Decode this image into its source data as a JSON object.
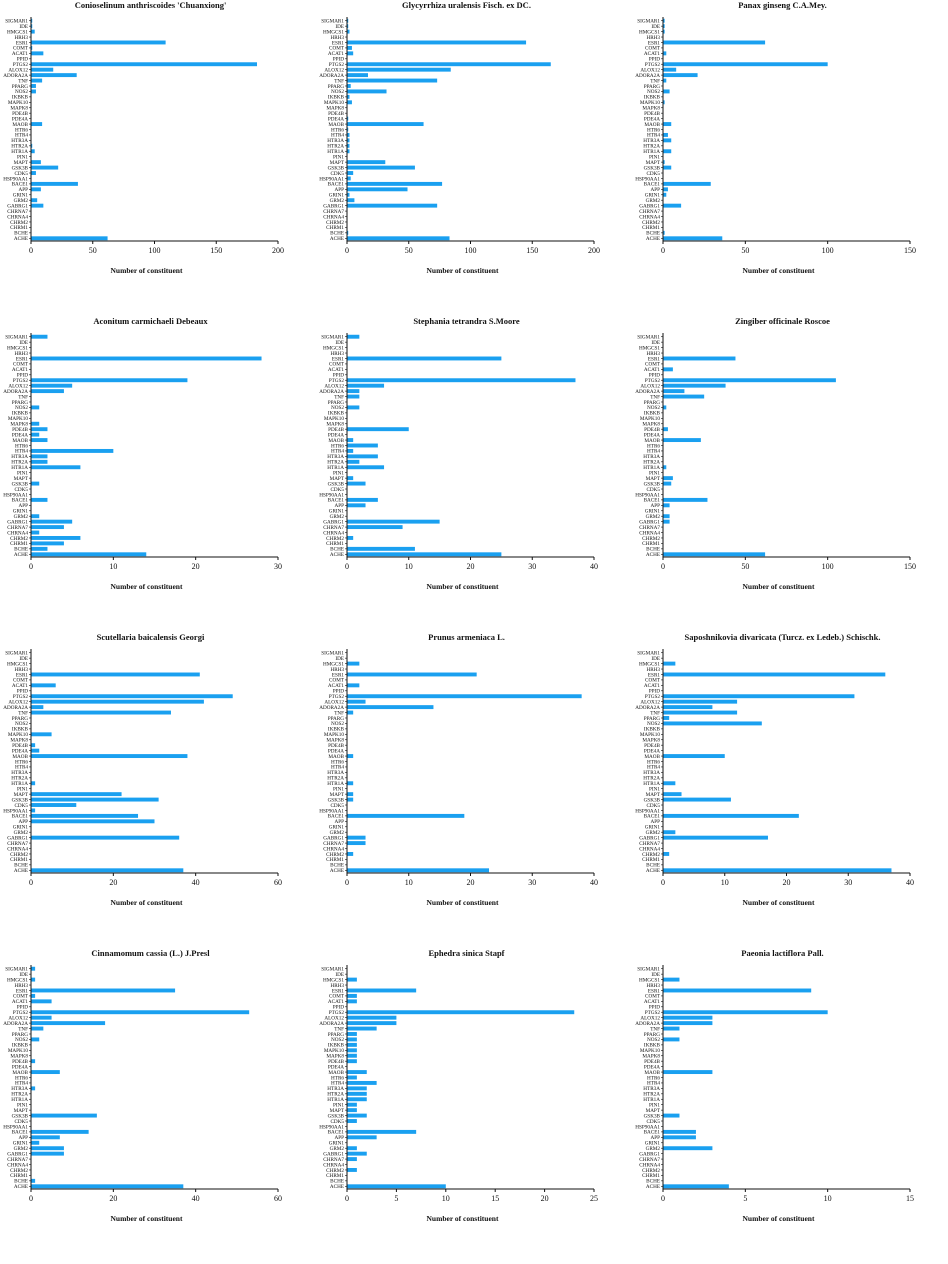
{
  "colors": {
    "bar": "#1aa0f0",
    "axis": "#111111"
  },
  "chart_data": [
    {
      "type": "bar",
      "orientation": "horizontal",
      "title": "Conioselinum anthriscoides 'Chuanxiong'",
      "xlabel": "Number of constituent",
      "xlim": [
        0,
        200
      ],
      "xticks": [
        0,
        50,
        100,
        150,
        200
      ],
      "categories": [
        "SIGMAR1",
        "IDE",
        "HMGCS1",
        "HRH3",
        "ESR1",
        "COMT",
        "ACAT1",
        "PPID",
        "PTGS2",
        "ALOX12",
        "ADORA2A",
        "TNF",
        "PPARG",
        "NOS2",
        "IKBKB",
        "MAPK10",
        "MAPK8",
        "PDE4B",
        "PDE4A",
        "MAOB",
        "HTR6",
        "HTR4",
        "HTR3A",
        "HTR2A",
        "HTR1A",
        "PIN1",
        "MAPT",
        "GSK3B",
        "CDK5",
        "HSP90AA1",
        "BACE1",
        "APP",
        "GRIN1",
        "GRM2",
        "GABRG1",
        "CHRNA7",
        "CHRNA4",
        "CHRM2",
        "CHRM1",
        "BCHE",
        "ACHE"
      ],
      "values": [
        1,
        1,
        3,
        0,
        109,
        1,
        10,
        0,
        183,
        18,
        37,
        9,
        4,
        4,
        0,
        0,
        0,
        0,
        0,
        9,
        0,
        0,
        0,
        1,
        3,
        0,
        8,
        22,
        4,
        0,
        38,
        8,
        0,
        5,
        10,
        0,
        0,
        0,
        0,
        0,
        62
      ]
    },
    {
      "type": "bar",
      "orientation": "horizontal",
      "title": "Glycyrrhiza uralensis Fisch. ex DC.",
      "xlabel": "Number of constituent",
      "xlim": [
        0,
        200
      ],
      "xticks": [
        0,
        50,
        100,
        150,
        200
      ],
      "categories": [
        "SIGMAR1",
        "IDE",
        "HMGCS1",
        "HRH3",
        "ESR1",
        "COMT",
        "ACAT1",
        "PPID",
        "PTGS2",
        "ALOX12",
        "ADORA2A",
        "TNF",
        "PPARG",
        "NOS2",
        "IKBKB",
        "MAPK10",
        "MAPK8",
        "PDE4B",
        "PDE4A",
        "MAOB",
        "HTR6",
        "HTR4",
        "HTR3A",
        "HTR2A",
        "HTR1A",
        "PIN1",
        "MAPT",
        "GSK3B",
        "CDK5",
        "HSP90AA1",
        "BACE1",
        "APP",
        "GRIN1",
        "GRM2",
        "GABRG1",
        "CHRNA7",
        "CHRNA4",
        "CHRM2",
        "CHRM1",
        "BCHE",
        "ACHE"
      ],
      "values": [
        1,
        1,
        2,
        0,
        145,
        4,
        5,
        0,
        165,
        84,
        17,
        73,
        3,
        32,
        2,
        4,
        0,
        0,
        1,
        62,
        1,
        2,
        2,
        2,
        2,
        0,
        31,
        55,
        5,
        3,
        77,
        49,
        2,
        6,
        73,
        0,
        0,
        0,
        0,
        1,
        83
      ]
    },
    {
      "type": "bar",
      "orientation": "horizontal",
      "title": "Panax ginseng C.A.Mey.",
      "xlabel": "Number of constituent",
      "xlim": [
        0,
        150
      ],
      "xticks": [
        0,
        50,
        100,
        150
      ],
      "categories": [
        "SIGMAR1",
        "IDE",
        "HMGCS1",
        "HRH3",
        "ESR1",
        "COMT",
        "ACAT1",
        "PPID",
        "PTGS2",
        "ALOX12",
        "ADORA2A",
        "TNF",
        "PPARG",
        "NOS2",
        "IKBKB",
        "MAPK10",
        "MAPK8",
        "PDE4B",
        "PDE4A",
        "MAOB",
        "HTR6",
        "HTR4",
        "HTR3A",
        "HTR2A",
        "HTR1A",
        "PIN1",
        "MAPT",
        "GSK3B",
        "CDK5",
        "HSP90AA1",
        "BACE1",
        "APP",
        "GRIN1",
        "GRM2",
        "GABRG1",
        "CHRNA7",
        "CHRNA4",
        "CHRM2",
        "CHRM1",
        "BCHE",
        "ACHE"
      ],
      "values": [
        1,
        1,
        1,
        0,
        62,
        0,
        2,
        0,
        100,
        8,
        21,
        2,
        0,
        4,
        0,
        1,
        0,
        0,
        0,
        5,
        0,
        3,
        5,
        0,
        5,
        0,
        1,
        5,
        0,
        0,
        29,
        3,
        2,
        0,
        11,
        0,
        0,
        0,
        0,
        1,
        36
      ]
    },
    {
      "type": "bar",
      "orientation": "horizontal",
      "title": "Aconitum carmichaeli Debeaux",
      "xlabel": "Number of constituent",
      "xlim": [
        0,
        30
      ],
      "xticks": [
        0,
        10,
        20,
        30
      ],
      "categories": [
        "SIGMAR1",
        "IDE",
        "HMGCS1",
        "HRH3",
        "ESR1",
        "COMT",
        "ACAT1",
        "PPID",
        "PTGS2",
        "ALOX12",
        "ADORA2A",
        "TNF",
        "PPARG",
        "NOS2",
        "IKBKB",
        "MAPK10",
        "MAPK8",
        "PDE4B",
        "PDE4A",
        "MAOB",
        "HTR6",
        "HTR4",
        "HTR3A",
        "HTR2A",
        "HTR1A",
        "PIN1",
        "MAPT",
        "GSK3B",
        "CDK5",
        "HSP90AA1",
        "BACE1",
        "APP",
        "GRIN1",
        "GRM2",
        "GABRG1",
        "CHRNA7",
        "CHRNA4",
        "CHRM2",
        "CHRM1",
        "BCHE",
        "ACHE"
      ],
      "values": [
        2,
        0,
        0,
        0,
        28,
        0,
        0,
        0,
        19,
        5,
        4,
        0,
        0,
        1,
        0,
        0,
        1,
        2,
        1,
        2,
        0,
        10,
        2,
        2,
        6,
        0,
        0,
        1,
        0,
        0,
        2,
        0,
        0,
        1,
        5,
        4,
        1,
        6,
        4,
        2,
        14
      ]
    },
    {
      "type": "bar",
      "orientation": "horizontal",
      "title": "Stephania tetrandra S.Moore",
      "xlabel": "Number of constituent",
      "xlim": [
        0,
        40
      ],
      "xticks": [
        0,
        10,
        20,
        30,
        40
      ],
      "categories": [
        "SIGMAR1",
        "IDE",
        "HMGCS1",
        "HRH3",
        "ESR1",
        "COMT",
        "ACAT1",
        "PPID",
        "PTGS2",
        "ALOX12",
        "ADORA2A",
        "TNF",
        "PPARG",
        "NOS2",
        "IKBKB",
        "MAPK10",
        "MAPK8",
        "PDE4B",
        "PDE4A",
        "MAOB",
        "HTR6",
        "HTR4",
        "HTR3A",
        "HTR2A",
        "HTR1A",
        "PIN1",
        "MAPT",
        "GSK3B",
        "CDK5",
        "HSP90AA1",
        "BACE1",
        "APP",
        "GRIN1",
        "GRM2",
        "GABRG1",
        "CHRNA7",
        "CHRNA4",
        "CHRM2",
        "CHRM1",
        "BCHE",
        "ACHE"
      ],
      "values": [
        2,
        0,
        0,
        0,
        25,
        0,
        0,
        0,
        37,
        6,
        2,
        2,
        0,
        2,
        0,
        0,
        0,
        10,
        0,
        1,
        5,
        1,
        5,
        2,
        6,
        0,
        1,
        3,
        0,
        0,
        5,
        3,
        0,
        0,
        15,
        9,
        0,
        1,
        0,
        11,
        25
      ]
    },
    {
      "type": "bar",
      "orientation": "horizontal",
      "title": "Zingiber officinale Roscoe",
      "xlabel": "Number of constituent",
      "xlim": [
        0,
        150
      ],
      "xticks": [
        0,
        50,
        100,
        150
      ],
      "categories": [
        "SIGMAR1",
        "IDE",
        "HMGCS1",
        "HRH3",
        "ESR1",
        "COMT",
        "ACAT1",
        "PPID",
        "PTGS2",
        "ALOX12",
        "ADORA2A",
        "TNF",
        "PPARG",
        "NOS2",
        "IKBKB",
        "MAPK10",
        "MAPK8",
        "PDE4B",
        "PDE4A",
        "MAOB",
        "HTR6",
        "HTR4",
        "HTR3A",
        "HTR2A",
        "HTR1A",
        "PIN1",
        "MAPT",
        "GSK3B",
        "CDK5",
        "HSP90AA1",
        "BACE1",
        "APP",
        "GRIN1",
        "GRM2",
        "GABRG1",
        "CHRNA7",
        "CHRNA4",
        "CHRM2",
        "CHRM1",
        "BCHE",
        "ACHE"
      ],
      "values": [
        0,
        0,
        0,
        0,
        44,
        0,
        6,
        0,
        105,
        38,
        13,
        25,
        0,
        2,
        0,
        0,
        0,
        3,
        0,
        23,
        0,
        0,
        0,
        0,
        2,
        0,
        6,
        5,
        0,
        0,
        27,
        4,
        0,
        4,
        4,
        0,
        0,
        0,
        0,
        0,
        62
      ]
    },
    {
      "type": "bar",
      "orientation": "horizontal",
      "title": "Scutellaria baicalensis Georgi",
      "xlabel": "Number of constituent",
      "xlim": [
        0,
        60
      ],
      "xticks": [
        0,
        20,
        40,
        60
      ],
      "categories": [
        "SIGMAR1",
        "IDE",
        "HMGCS1",
        "HRH3",
        "ESR1",
        "COMT",
        "ACAT1",
        "PPID",
        "PTGS2",
        "ALOX12",
        "ADORA2A",
        "TNF",
        "PPARG",
        "NOS2",
        "IKBKB",
        "MAPK10",
        "MAPK8",
        "PDE4B",
        "PDE4A",
        "MAOB",
        "HTR6",
        "HTR4",
        "HTR3A",
        "HTR2A",
        "HTR1A",
        "PIN1",
        "MAPT",
        "GSK3B",
        "CDK5",
        "HSP90AA1",
        "BACE1",
        "APP",
        "GRIN1",
        "GRM2",
        "GABRG1",
        "CHRNA7",
        "CHRNA4",
        "CHRM2",
        "CHRM1",
        "BCHE",
        "ACHE"
      ],
      "values": [
        0,
        0,
        0,
        0,
        41,
        0,
        6,
        0,
        49,
        42,
        3,
        34,
        0,
        0,
        0,
        5,
        0,
        1,
        2,
        38,
        0,
        0,
        0,
        0,
        1,
        0,
        22,
        31,
        11,
        1,
        26,
        30,
        0,
        0,
        36,
        0,
        0,
        0,
        0,
        0,
        37
      ]
    },
    {
      "type": "bar",
      "orientation": "horizontal",
      "title": "Prunus armeniaca L.",
      "xlabel": "Number of constituent",
      "xlim": [
        0,
        40
      ],
      "xticks": [
        0,
        10,
        20,
        30,
        40
      ],
      "categories": [
        "SIGMAR1",
        "IDE",
        "HMGCS1",
        "HRH3",
        "ESR1",
        "COMT",
        "ACAT1",
        "PPID",
        "PTGS2",
        "ALOX12",
        "ADORA2A",
        "TNF",
        "PPARG",
        "NOS2",
        "IKBKB",
        "MAPK10",
        "MAPK8",
        "PDE4B",
        "PDE4A",
        "MAOB",
        "HTR6",
        "HTR4",
        "HTR3A",
        "HTR2A",
        "HTR1A",
        "PIN1",
        "MAPT",
        "GSK3B",
        "CDK5",
        "HSP90AA1",
        "BACE1",
        "APP",
        "GRIN1",
        "GRM2",
        "GABRG1",
        "CHRNA7",
        "CHRNA4",
        "CHRM2",
        "CHRM1",
        "BCHE",
        "ACHE"
      ],
      "values": [
        0,
        0,
        2,
        0,
        21,
        0,
        2,
        0,
        38,
        3,
        14,
        1,
        0,
        0,
        0,
        0,
        0,
        0,
        0,
        1,
        0,
        0,
        0,
        0,
        1,
        0,
        1,
        1,
        0,
        0,
        19,
        0,
        0,
        0,
        3,
        3,
        0,
        1,
        0,
        0,
        23
      ]
    },
    {
      "type": "bar",
      "orientation": "horizontal",
      "title": "Saposhnikovia divaricata (Turcz. ex Ledeb.) Schischk.",
      "xlabel": "Number of constituent",
      "xlim": [
        0,
        40
      ],
      "xticks": [
        0,
        10,
        20,
        30,
        40
      ],
      "categories": [
        "SIGMAR1",
        "IDE",
        "HMGCS1",
        "HRH3",
        "ESR1",
        "COMT",
        "ACAT1",
        "PPID",
        "PTGS2",
        "ALOX12",
        "ADORA2A",
        "TNF",
        "PPARG",
        "NOS2",
        "IKBKB",
        "MAPK10",
        "MAPK8",
        "PDE4B",
        "PDE4A",
        "MAOB",
        "HTR6",
        "HTR4",
        "HTR3A",
        "HTR2A",
        "HTR1A",
        "PIN1",
        "MAPT",
        "GSK3B",
        "CDK5",
        "HSP90AA1",
        "BACE1",
        "APP",
        "GRIN1",
        "GRM2",
        "GABRG1",
        "CHRNA7",
        "CHRNA4",
        "CHRM2",
        "CHRM1",
        "BCHE",
        "ACHE"
      ],
      "values": [
        0,
        0,
        2,
        0,
        36,
        0,
        0,
        0,
        31,
        12,
        8,
        12,
        1,
        16,
        0,
        0,
        0,
        0,
        0,
        10,
        0,
        0,
        0,
        0,
        2,
        0,
        3,
        11,
        0,
        0,
        22,
        0,
        0,
        2,
        17,
        0,
        0,
        1,
        0,
        0,
        37
      ]
    },
    {
      "type": "bar",
      "orientation": "horizontal",
      "title": "Cinnamomum cassia (L.) J.Presl",
      "xlabel": "Number of constituent",
      "xlim": [
        0,
        60
      ],
      "xticks": [
        0,
        20,
        40,
        60
      ],
      "categories": [
        "SIGMAR1",
        "IDE",
        "HMGCS1",
        "HRH3",
        "ESR1",
        "COMT",
        "ACAT1",
        "PPID",
        "PTGS2",
        "ALOX12",
        "ADORA2A",
        "TNF",
        "PPARG",
        "NOS2",
        "IKBKB",
        "MAPK10",
        "MAPK8",
        "PDE4B",
        "PDE4A",
        "MAOB",
        "HTR6",
        "HTR4",
        "HTR3A",
        "HTR2A",
        "HTR1A",
        "PIN1",
        "MAPT",
        "GSK3B",
        "CDK5",
        "HSP90AA1",
        "BACE1",
        "APP",
        "GRIN1",
        "GRM2",
        "GABRG1",
        "CHRNA7",
        "CHRNA4",
        "CHRM2",
        "CHRM1",
        "BCHE",
        "ACHE"
      ],
      "values": [
        1,
        0,
        1,
        0,
        35,
        1,
        5,
        0,
        53,
        5,
        18,
        3,
        0,
        2,
        0,
        0,
        0,
        1,
        0,
        7,
        0,
        0,
        1,
        0,
        0,
        0,
        0,
        16,
        0,
        0,
        14,
        7,
        2,
        8,
        8,
        0,
        0,
        0,
        0,
        1,
        37
      ]
    },
    {
      "type": "bar",
      "orientation": "horizontal",
      "title": "Ephedra sinica Stapf",
      "xlabel": "Number of constituent",
      "xlim": [
        0,
        25
      ],
      "xticks": [
        0,
        5,
        10,
        15,
        20,
        25
      ],
      "categories": [
        "SIGMAR1",
        "IDE",
        "HMGCS1",
        "HRH3",
        "ESR1",
        "COMT",
        "ACAT1",
        "PPID",
        "PTGS2",
        "ALOX12",
        "ADORA2A",
        "TNF",
        "PPARG",
        "NOS2",
        "IKBKB",
        "MAPK10",
        "MAPK8",
        "PDE4B",
        "PDE4A",
        "MAOB",
        "HTR6",
        "HTR4",
        "HTR3A",
        "HTR2A",
        "HTR1A",
        "PIN1",
        "MAPT",
        "GSK3B",
        "CDK5",
        "HSP90AA1",
        "BACE1",
        "APP",
        "GRIN1",
        "GRM2",
        "GABRG1",
        "CHRNA7",
        "CHRNA4",
        "CHRM2",
        "CHRM1",
        "BCHE",
        "ACHE"
      ],
      "values": [
        0,
        0,
        1,
        0,
        7,
        1,
        1,
        0,
        23,
        5,
        5,
        3,
        1,
        1,
        1,
        1,
        1,
        1,
        0,
        2,
        1,
        3,
        2,
        2,
        2,
        1,
        1,
        2,
        1,
        0,
        7,
        3,
        0,
        1,
        2,
        1,
        0,
        1,
        0,
        0,
        10
      ]
    },
    {
      "type": "bar",
      "orientation": "horizontal",
      "title": "Paeonia lactiflora Pall.",
      "xlabel": "Number of constituent",
      "xlim": [
        0,
        15
      ],
      "xticks": [
        0,
        5,
        10,
        15
      ],
      "categories": [
        "SIGMAR1",
        "IDE",
        "HMGCS1",
        "HRH3",
        "ESR1",
        "COMT",
        "ACAT1",
        "PPID",
        "PTGS2",
        "ALOX12",
        "ADORA2A",
        "TNF",
        "PPARG",
        "NOS2",
        "IKBKB",
        "MAPK10",
        "MAPK8",
        "PDE4B",
        "PDE4A",
        "MAOB",
        "HTR6",
        "HTR4",
        "HTR3A",
        "HTR2A",
        "HTR1A",
        "PIN1",
        "MAPT",
        "GSK3B",
        "CDK5",
        "HSP90AA1",
        "BACE1",
        "APP",
        "GRIN1",
        "GRM2",
        "GABRG1",
        "CHRNA7",
        "CHRNA4",
        "CHRM2",
        "CHRM1",
        "BCHE",
        "ACHE"
      ],
      "values": [
        0,
        0,
        1,
        0,
        9,
        0,
        0,
        0,
        10,
        3,
        3,
        1,
        0,
        1,
        0,
        0,
        0,
        0,
        0,
        3,
        0,
        0,
        0,
        0,
        0,
        0,
        0,
        1,
        0,
        0,
        2,
        2,
        0,
        3,
        0,
        0,
        0,
        0,
        0,
        0,
        4
      ]
    }
  ]
}
